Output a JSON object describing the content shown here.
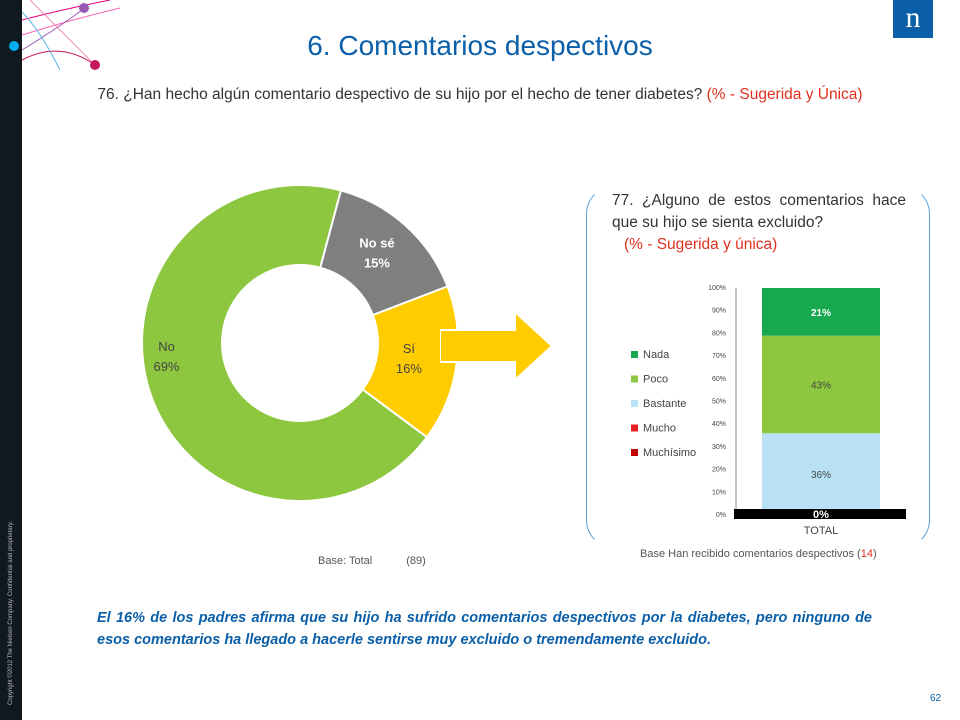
{
  "slide": {
    "title": "6. Comentarios despectivos",
    "question76_main": "76. ¿Han hecho algún comentario despectivo de su hijo por el hecho de tener diabetes?",
    "question76_note": "(% - Sugerida y Única)",
    "question77_main": "77. ¿Alguno de estos comentarios hace que su hijo se sienta excluido?",
    "question77_note": "(% - Sugerida y única)",
    "base_left_label": "Base: Total",
    "base_left_n": "(89)",
    "base_right_label": "Base Han recibido comentarios despectivos (",
    "base_right_n": "14",
    "base_right_close": ")",
    "summary": "El 16% de los padres afirma que su hijo ha sufrido comentarios despectivos por la diabetes, pero ninguno de esos comentarios ha llegado a hacerle sentirse muy excluido o tremendamente excluido.",
    "page_number": "62",
    "copyright": "Copyright ©2012 The Nielsen Company. Confidential and proprietary.",
    "logo_letter": "n"
  },
  "colors": {
    "brand_blue": "#0a5fa8",
    "accent_red": "#e0301e",
    "donut_no": "#8dc63f",
    "donut_nose": "#7f7f7f",
    "donut_si": "#ffcc00",
    "arrow": "#ffcc00",
    "nada": "#18a84f",
    "poco": "#8dc63f",
    "bastante": "#b9e1f5",
    "mucho": "#e81c24",
    "muchisimo": "#c00000"
  },
  "chart_data": [
    {
      "type": "pie",
      "subtype": "donut",
      "slices": [
        {
          "label": "No sé",
          "value": 15,
          "display": "15%",
          "color": "#7f7f7f"
        },
        {
          "label": "Sí",
          "value": 16,
          "display": "16%",
          "color": "#ffcc00"
        },
        {
          "label": "No",
          "value": 69,
          "display": "69%",
          "color": "#8dc63f"
        }
      ]
    },
    {
      "type": "bar",
      "subtype": "stacked-100",
      "categories": [
        "TOTAL"
      ],
      "series": [
        {
          "name": "Muchísimo",
          "values": [
            0
          ],
          "color": "#c00000"
        },
        {
          "name": "Mucho",
          "values": [
            0
          ],
          "color": "#e81c24"
        },
        {
          "name": "Bastante",
          "values": [
            36
          ],
          "color": "#b9e1f5"
        },
        {
          "name": "Poco",
          "values": [
            43
          ],
          "color": "#8dc63f"
        },
        {
          "name": "Nada",
          "values": [
            21
          ],
          "color": "#18a84f"
        }
      ],
      "segment_labels": [
        "36%",
        "43%",
        "21%"
      ],
      "zero_label": "0%",
      "yticks": [
        "0%",
        "10%",
        "20%",
        "30%",
        "40%",
        "50%",
        "60%",
        "70%",
        "80%",
        "90%",
        "100%"
      ],
      "ylim": [
        0,
        100
      ],
      "legend": [
        "Nada",
        "Poco",
        "Bastante",
        "Mucho",
        "Muchísimo"
      ],
      "legend_position": "left"
    }
  ]
}
